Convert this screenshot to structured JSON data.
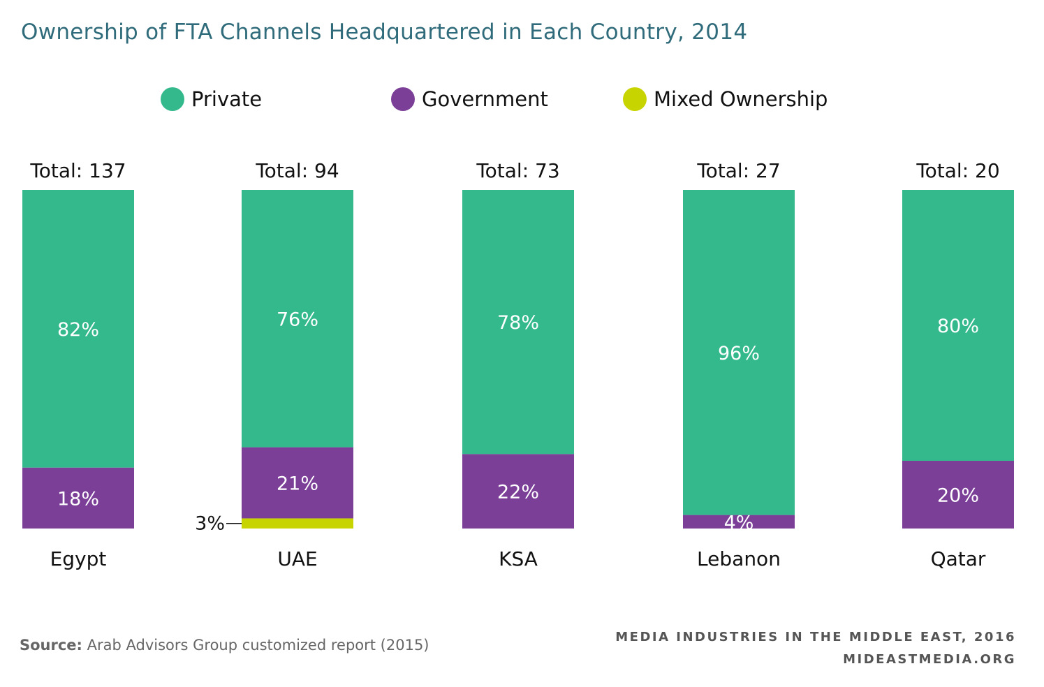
{
  "title": "Ownership of FTA Channels Headquartered in Each Country, 2014",
  "source_label": "Source:",
  "source_text": " Arab Advisors Group customized report (2015)",
  "footer": {
    "line1": "MEDIA INDUSTRIES IN THE MIDDLE EAST, 2016",
    "line2": "MIDEASTMEDIA.ORG"
  },
  "colors": {
    "private": "#34b98c",
    "government": "#7b3f98",
    "mixed": "#c8d400"
  },
  "chart_data": {
    "type": "bar",
    "stacked": true,
    "unit": "%",
    "legend_position": "top",
    "grid": false,
    "categories": [
      "Egypt",
      "UAE",
      "KSA",
      "Lebanon",
      "Qatar"
    ],
    "totals_labels": [
      "Total: 137",
      "Total: 94",
      "Total: 73",
      "Total: 27",
      "Total: 20"
    ],
    "series": [
      {
        "name": "Private",
        "values": [
          82,
          76,
          78,
          96,
          80
        ]
      },
      {
        "name": "Government",
        "values": [
          18,
          21,
          22,
          4,
          20
        ]
      },
      {
        "name": "Mixed Ownership",
        "values": [
          0,
          3,
          0,
          0,
          0
        ]
      }
    ],
    "ylim": [
      0,
      100
    ]
  }
}
